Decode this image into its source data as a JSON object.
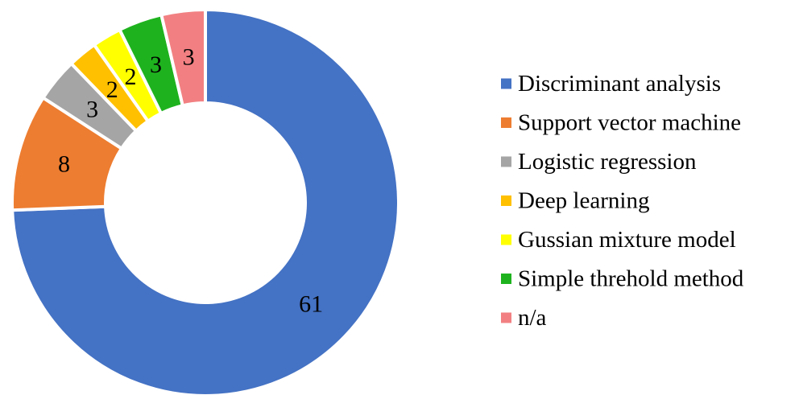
{
  "chart_data": {
    "type": "pie",
    "variant": "donut",
    "categories": [
      "Discriminant analysis",
      "Support vector machine",
      "Logistic regression",
      "Deep learning",
      "Gussian mixture model",
      "Simple threhold method",
      "n/a"
    ],
    "values": [
      61,
      8,
      3,
      2,
      2,
      3,
      3
    ],
    "data_labels": [
      "61",
      "8",
      "3",
      "2",
      "2",
      "3",
      "3"
    ],
    "colors": [
      "#4472C4",
      "#ED7D31",
      "#A5A5A5",
      "#FFC000",
      "#FFFF00",
      "#1EB31E",
      "#F28082"
    ],
    "start": "12 o'clock",
    "direction": "clockwise",
    "title": "",
    "legend": {
      "position": "right",
      "entries": [
        "Discriminant analysis",
        "Support vector machine",
        "Logistic regression",
        "Deep learning",
        "Gussian mixture model",
        "Simple threhold method",
        "n/a"
      ]
    }
  }
}
